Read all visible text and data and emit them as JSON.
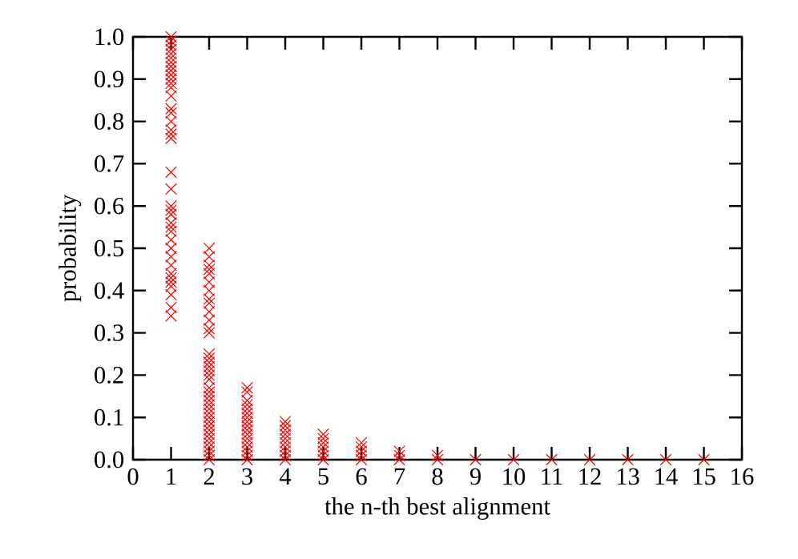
{
  "chart_data": {
    "type": "scatter",
    "xlabel": "the n-th best alignment",
    "ylabel": "probability",
    "xlim": [
      0,
      16
    ],
    "ylim": [
      0,
      1
    ],
    "xticks": [
      0,
      1,
      2,
      3,
      4,
      5,
      6,
      7,
      8,
      9,
      10,
      11,
      12,
      13,
      14,
      15,
      16
    ],
    "yticks": [
      {
        "value": 0,
        "label": "0.0"
      },
      {
        "value": 0.1,
        "label": "0.1"
      },
      {
        "value": 0.2,
        "label": "0.2"
      },
      {
        "value": 0.3,
        "label": "0.3"
      },
      {
        "value": 0.4,
        "label": "0.4"
      },
      {
        "value": 0.5,
        "label": "0.5"
      },
      {
        "value": 0.6,
        "label": "0.6"
      },
      {
        "value": 0.7,
        "label": "0.7"
      },
      {
        "value": 0.8,
        "label": "0.8"
      },
      {
        "value": 0.9,
        "label": "0.9"
      },
      {
        "value": 1,
        "label": "1.0"
      }
    ],
    "marker": "cross",
    "grid": false,
    "series": [
      {
        "color": "#ff0000",
        "x": [
          1,
          1,
          1,
          1,
          1,
          1,
          1,
          1,
          1,
          1,
          1,
          1,
          1,
          1,
          1,
          1,
          1,
          1,
          1,
          1,
          1,
          1,
          1,
          1,
          1,
          1,
          1,
          1,
          1,
          1,
          1,
          1,
          1,
          1,
          1,
          1,
          1,
          1,
          1,
          2,
          2,
          2,
          2,
          2,
          2,
          2,
          2,
          2,
          2,
          2,
          2,
          2,
          2,
          2,
          2,
          2,
          2,
          2,
          2,
          2,
          2,
          2,
          2,
          2,
          2,
          2,
          2,
          2,
          2,
          2,
          2,
          2,
          2,
          2,
          2,
          2,
          2,
          3,
          3,
          3,
          3,
          3,
          3,
          3,
          3,
          3,
          3,
          3,
          3,
          3,
          3,
          3,
          3,
          3,
          4,
          4,
          4,
          4,
          4,
          4,
          4,
          4,
          4,
          4,
          5,
          5,
          5,
          5,
          5,
          5,
          5,
          6,
          6,
          6,
          6,
          6,
          7,
          7,
          7,
          8,
          8,
          9,
          10,
          11,
          12,
          13,
          14,
          15
        ],
        "values": [
          1.0,
          0.99,
          0.98,
          0.97,
          0.96,
          0.95,
          0.94,
          0.93,
          0.92,
          0.91,
          0.9,
          0.89,
          0.88,
          0.86,
          0.83,
          0.82,
          0.8,
          0.78,
          0.77,
          0.76,
          0.68,
          0.64,
          0.6,
          0.59,
          0.58,
          0.56,
          0.55,
          0.54,
          0.52,
          0.5,
          0.48,
          0.46,
          0.44,
          0.43,
          0.42,
          0.41,
          0.39,
          0.36,
          0.34,
          0.5,
          0.48,
          0.46,
          0.45,
          0.44,
          0.42,
          0.4,
          0.38,
          0.37,
          0.35,
          0.33,
          0.31,
          0.3,
          0.25,
          0.24,
          0.23,
          0.22,
          0.21,
          0.2,
          0.19,
          0.17,
          0.16,
          0.15,
          0.14,
          0.13,
          0.12,
          0.11,
          0.1,
          0.09,
          0.08,
          0.07,
          0.06,
          0.05,
          0.04,
          0.03,
          0.02,
          0.01,
          0.0,
          0.17,
          0.16,
          0.14,
          0.13,
          0.12,
          0.11,
          0.1,
          0.09,
          0.08,
          0.07,
          0.06,
          0.05,
          0.04,
          0.03,
          0.02,
          0.01,
          0.0,
          0.09,
          0.08,
          0.07,
          0.06,
          0.05,
          0.04,
          0.03,
          0.02,
          0.01,
          0.0,
          0.06,
          0.05,
          0.04,
          0.03,
          0.02,
          0.01,
          0.0,
          0.04,
          0.03,
          0.02,
          0.01,
          0.0,
          0.02,
          0.01,
          0.0,
          0.01,
          0.0,
          0.0,
          0.0,
          0.0,
          0.0,
          0.0,
          0.0,
          0.0
        ]
      }
    ]
  }
}
